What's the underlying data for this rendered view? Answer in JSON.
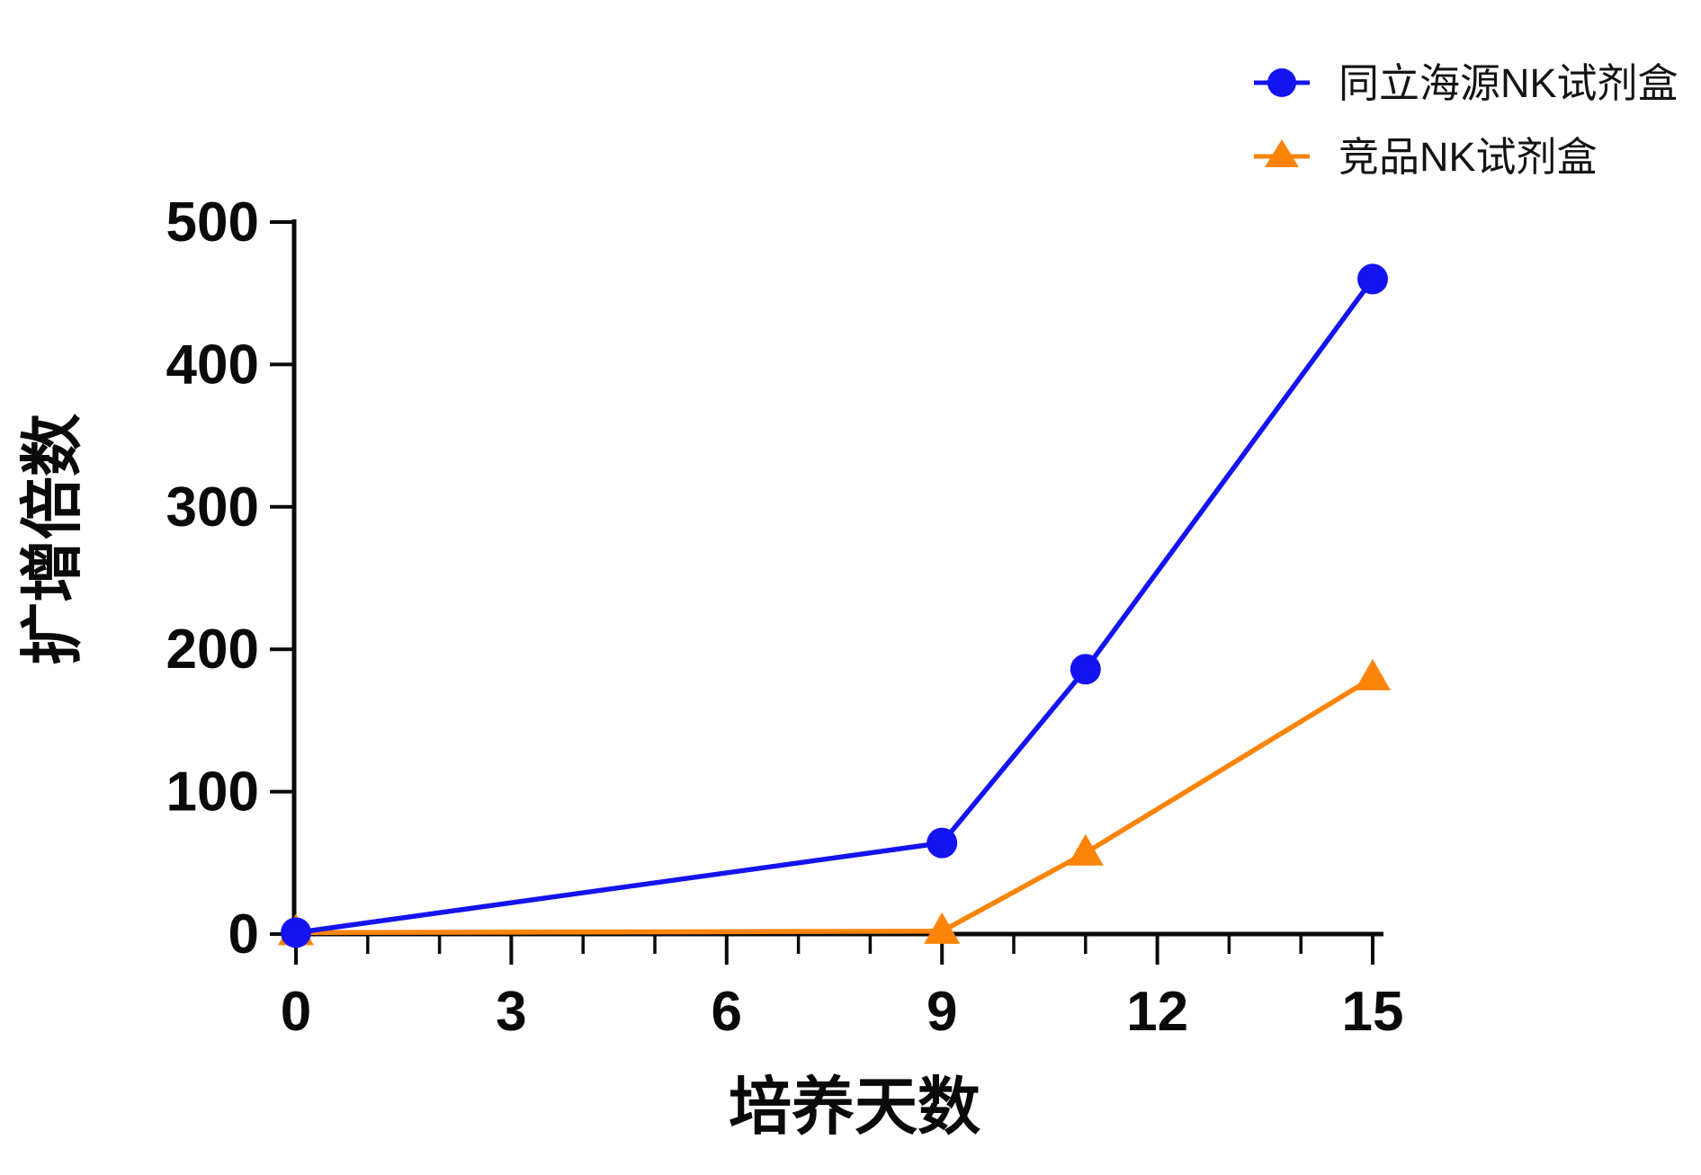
{
  "chart_data": {
    "type": "line",
    "title": "",
    "xlabel": "培养天数",
    "ylabel": "扩增倍数",
    "xlim": [
      0,
      15
    ],
    "ylim": [
      0,
      500
    ],
    "xticks_major": [
      0,
      3,
      6,
      9,
      12,
      15
    ],
    "xticks_minor_step": 1,
    "yticks": [
      0,
      100,
      200,
      300,
      400,
      500
    ],
    "grid": "off",
    "legend_position": "top-right",
    "x": [
      0,
      9,
      11,
      15
    ],
    "series": [
      {
        "name": "同立海源NK试剂盒",
        "marker": "circle",
        "color": "#1414F0",
        "values": [
          1,
          64,
          186,
          460
        ]
      },
      {
        "name": "竞品NK试剂盒",
        "marker": "triangle",
        "color": "#FB8409",
        "values": [
          1,
          2,
          57,
          180
        ]
      }
    ],
    "axis_color": "#0a0a0a"
  },
  "legend": {
    "items": [
      {
        "label": "同立海源NK试剂盒"
      },
      {
        "label": "竞品NK试剂盒"
      }
    ]
  }
}
